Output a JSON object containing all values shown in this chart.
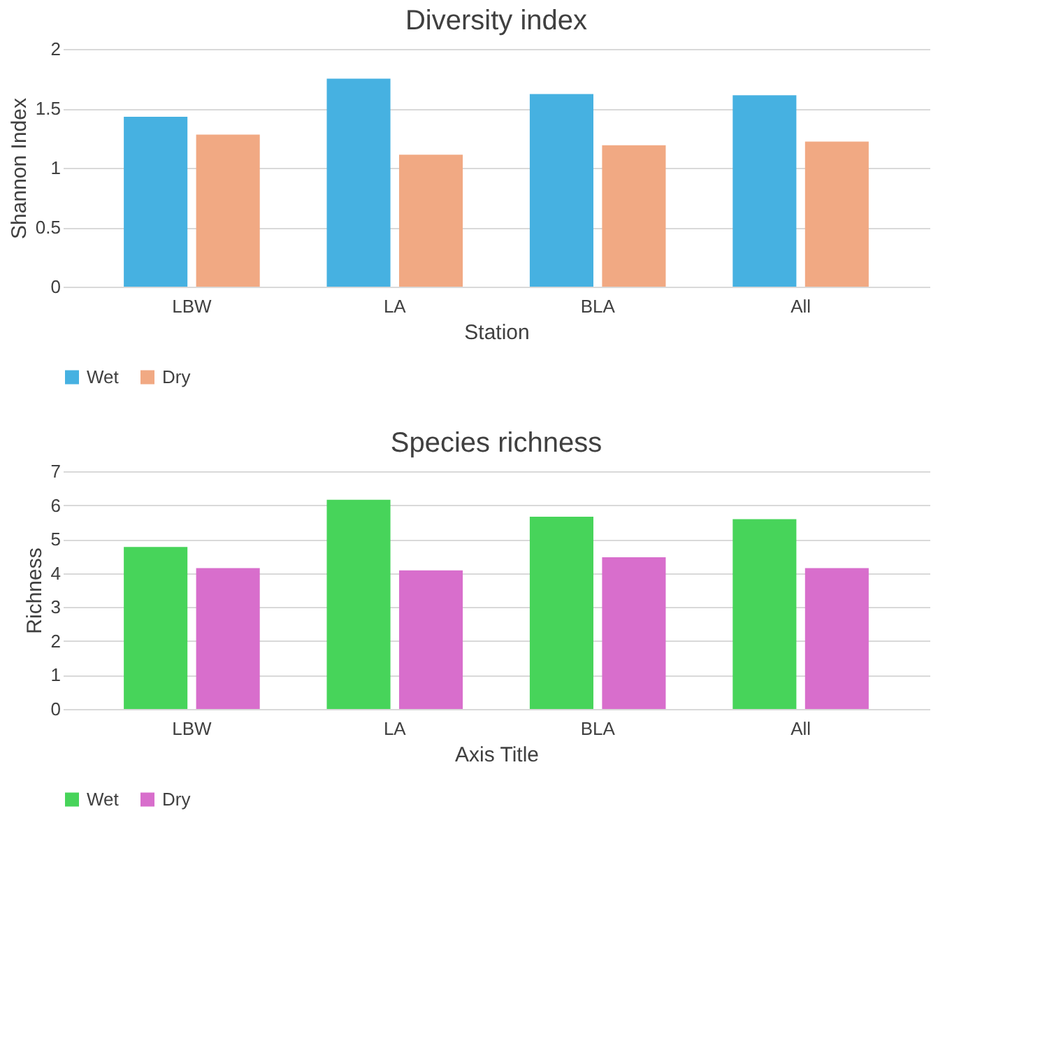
{
  "chart_data": [
    {
      "type": "bar",
      "title": "Diversity index",
      "xlabel": "Station",
      "ylabel": "Shannon Index",
      "categories": [
        "LBW",
        "LA",
        "BLA",
        "All"
      ],
      "series": [
        {
          "name": "Wet",
          "color": "#46b1e1",
          "values": [
            1.43,
            1.75,
            1.62,
            1.61
          ]
        },
        {
          "name": "Dry",
          "color": "#f1a983",
          "values": [
            1.28,
            1.11,
            1.19,
            1.22
          ]
        }
      ],
      "ylim": [
        0,
        2
      ],
      "yticks": [
        0,
        0.5,
        1,
        1.5,
        2
      ],
      "grid": "y",
      "legend": "bottom"
    },
    {
      "type": "bar",
      "title": "Species richness",
      "xlabel": "Axis Title",
      "ylabel": "Richness",
      "categories": [
        "LBW",
        "LA",
        "BLA",
        "All"
      ],
      "series": [
        {
          "name": "Wet",
          "color": "#47d45a",
          "values": [
            4.77,
            6.16,
            5.66,
            5.59
          ]
        },
        {
          "name": "Dry",
          "color": "#d86ecc",
          "values": [
            4.15,
            4.08,
            4.47,
            4.15
          ]
        }
      ],
      "ylim": [
        0,
        7
      ],
      "yticks": [
        0,
        1,
        2,
        3,
        4,
        5,
        6,
        7
      ],
      "grid": "y",
      "legend": "bottom"
    }
  ]
}
